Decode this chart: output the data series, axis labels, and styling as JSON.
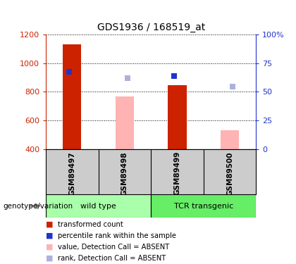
{
  "title": "GDS1936 / 168519_at",
  "samples": [
    "GSM89497",
    "GSM89498",
    "GSM89499",
    "GSM89500"
  ],
  "ylim_left": [
    400,
    1200
  ],
  "ylim_right": [
    0,
    100
  ],
  "yticks_left": [
    400,
    600,
    800,
    1000,
    1200
  ],
  "yticks_right": [
    0,
    25,
    50,
    75,
    100
  ],
  "red_bars": [
    1130,
    null,
    845,
    null
  ],
  "pink_bars": [
    null,
    765,
    null,
    530
  ],
  "blue_squares_val": [
    940,
    null,
    910,
    null
  ],
  "lavender_squares_val": [
    null,
    895,
    null,
    835
  ],
  "bar_bottom": 400,
  "bar_width": 0.35,
  "red_color": "#cc2200",
  "pink_color": "#ffb3b3",
  "blue_color": "#2233cc",
  "lavender_color": "#b0b0dd",
  "group_wild_color": "#aaffaa",
  "group_tcr_color": "#66ee66",
  "sample_bg_color": "#cccccc",
  "legend_labels": [
    "transformed count",
    "percentile rank within the sample",
    "value, Detection Call = ABSENT",
    "rank, Detection Call = ABSENT"
  ],
  "xlabel_label": "genotype/variation"
}
